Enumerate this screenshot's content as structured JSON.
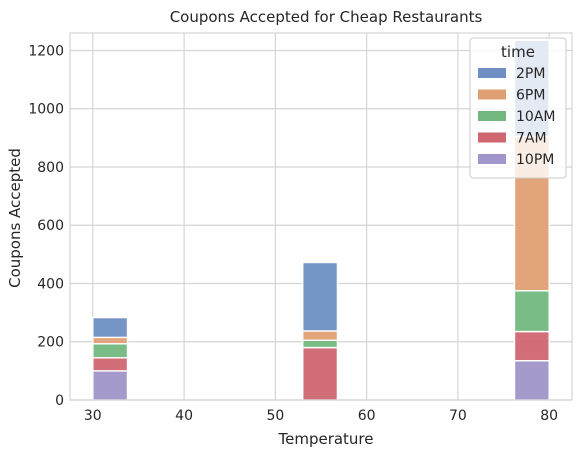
{
  "chart_data": {
    "type": "bar",
    "stacked": true,
    "title": "Coupons Accepted for Cheap Restaurants",
    "xlabel": "Temperature",
    "ylabel": "Coupons Accepted",
    "xlim": [
      27.5,
      82.5
    ],
    "ylim": [
      0,
      1260
    ],
    "xticks": [
      30,
      40,
      50,
      60,
      70,
      80
    ],
    "yticks": [
      0,
      200,
      400,
      600,
      800,
      1000,
      1200
    ],
    "grid": true,
    "bins": [
      {
        "x0": 30,
        "x1": 33.8
      },
      {
        "x0": 53,
        "x1": 56.8
      },
      {
        "x0": 76.2,
        "x1": 80
      }
    ],
    "legend": {
      "title": "time",
      "position": "top-right"
    },
    "series": [
      {
        "name": "2PM",
        "color": "#6f8fc4",
        "values": [
          68,
          235,
          330
        ]
      },
      {
        "name": "6PM",
        "color": "#e09f73",
        "values": [
          22,
          32,
          530
        ]
      },
      {
        "name": "10AM",
        "color": "#72b87f",
        "values": [
          48,
          25,
          140
        ]
      },
      {
        "name": "7AM",
        "color": "#cf6670",
        "values": [
          45,
          180,
          100
        ]
      },
      {
        "name": "10PM",
        "color": "#a195c9",
        "values": [
          100,
          0,
          135
        ]
      }
    ]
  }
}
